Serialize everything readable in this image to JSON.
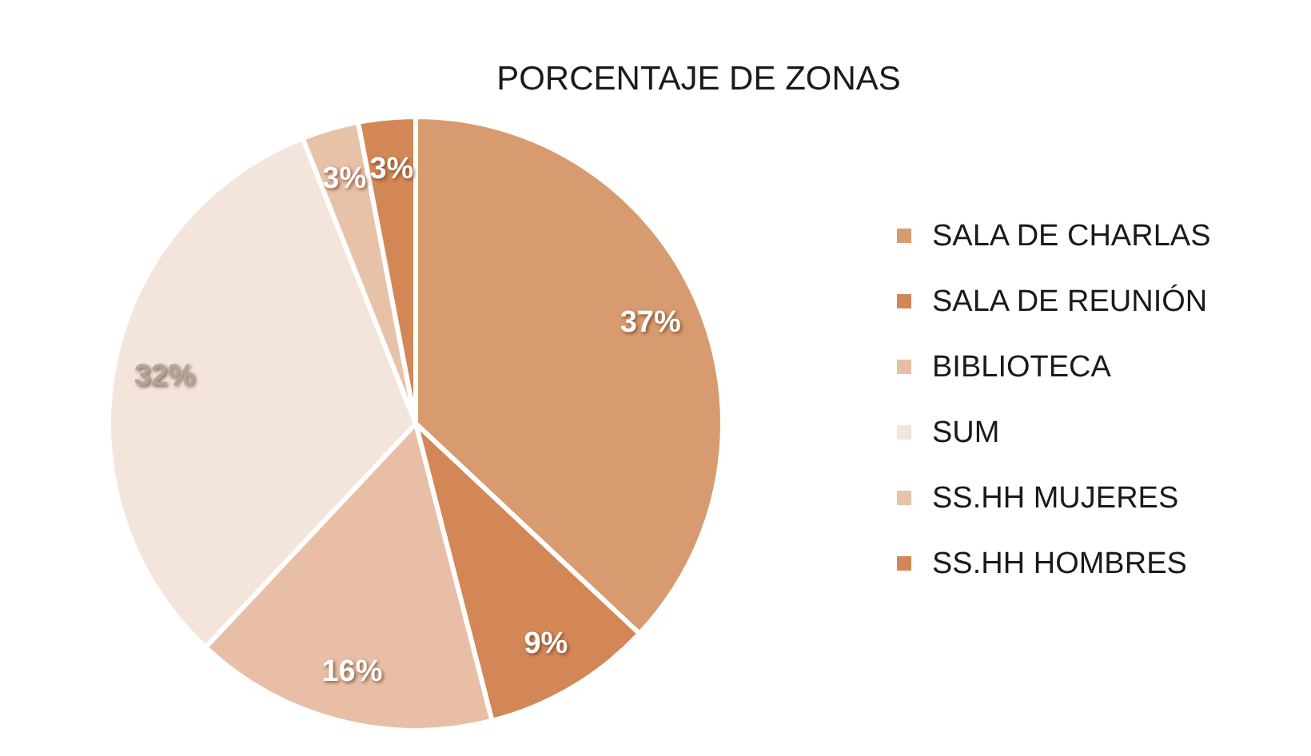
{
  "chart_data": {
    "type": "pie",
    "title": "PORCENTAJE DE ZONAS",
    "categories": [
      "SALA DE CHARLAS",
      "SALA DE REUNIÓN",
      "BIBLIOTECA",
      "SUM",
      "SS.HH MUJERES",
      "SS.HH HOMBRES"
    ],
    "values": [
      37,
      9,
      16,
      32,
      3,
      3
    ],
    "value_labels": [
      "37%",
      "9%",
      "16%",
      "32%",
      "3%",
      "3%"
    ],
    "colors": [
      "#d89a6f",
      "#d38756",
      "#e8bfa6",
      "#f3e5db",
      "#e8c1a9",
      "#d38756"
    ],
    "legend": "right"
  }
}
